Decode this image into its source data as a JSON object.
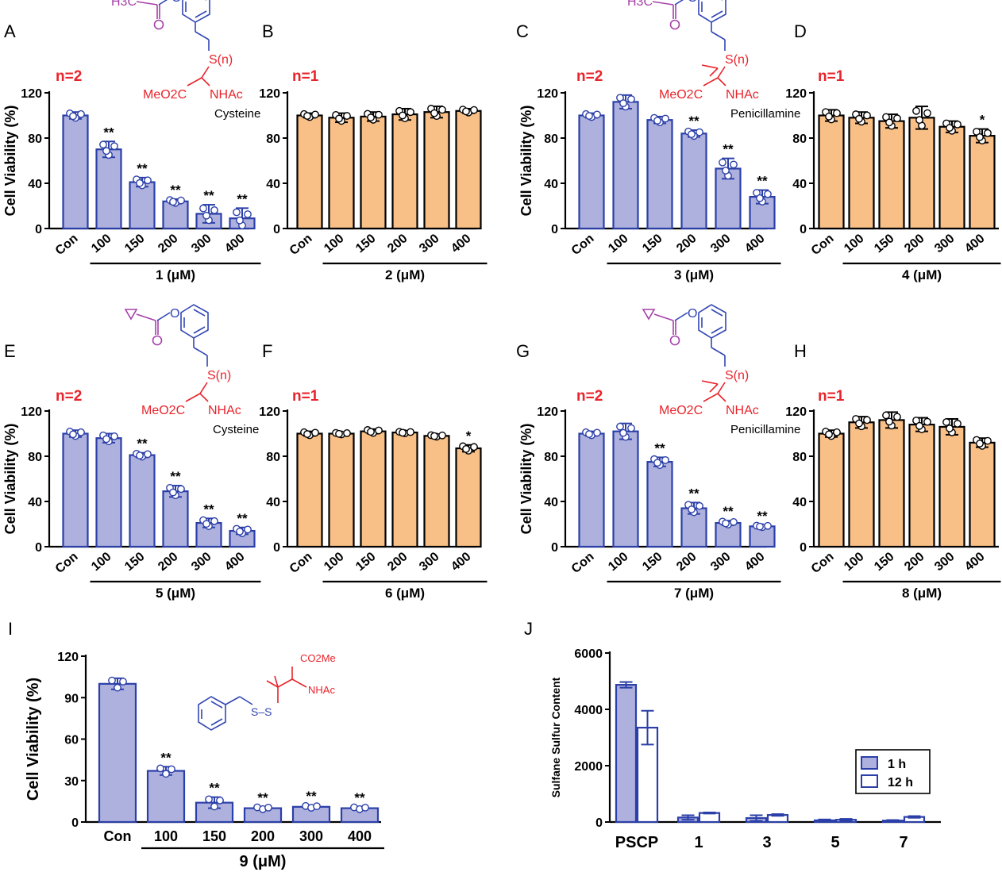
{
  "colors": {
    "blue_fill": "#aeb1de",
    "blue_edge": "#2b3fa8",
    "orange_fill": "#f8bf86",
    "black": "#000000",
    "red_text": "#e8242c",
    "purple_struct": "#a640a8",
    "blue_struct": "#3246b4",
    "red_struct": "#e8242c"
  },
  "icons": {
    "structure": "chemical-structure-icon",
    "dot": "data-point-icon"
  },
  "shared": {
    "ylabel": "Cell Viability (%)",
    "categories": [
      "Con",
      "100",
      "150",
      "200",
      "300",
      "400"
    ]
  },
  "chart_data": [
    {
      "id": "A",
      "panel_letter": "A",
      "type": "bar",
      "n_label": "n=2",
      "title": "",
      "ylabel": "Cell Viability (%)",
      "xlabel": "1 (μM)",
      "ylim": [
        0,
        120
      ],
      "yticks": [
        "0",
        "40",
        "80",
        "120"
      ],
      "categories": [
        "Con",
        "100",
        "150",
        "200",
        "300",
        "400"
      ],
      "values": [
        100,
        70,
        41,
        24,
        13,
        9
      ],
      "errors": [
        3,
        7,
        4,
        2,
        8,
        9
      ],
      "significance": [
        "",
        "**",
        "**",
        "**",
        "**",
        "**"
      ],
      "color": "blue",
      "structure": {
        "acyl": "H3C",
        "ring_sub": "O",
        "linker": "S(n)",
        "ester": "MeO2C",
        "amide": "NHAc",
        "label": "Cysteine",
        "gem_dimethyl": false
      }
    },
    {
      "id": "B",
      "panel_letter": "B",
      "type": "bar",
      "n_label": "n=1",
      "title": "",
      "ylabel": "",
      "xlabel": "2 (μM)",
      "ylim": [
        0,
        120
      ],
      "yticks": [
        "0",
        "40",
        "80",
        "120"
      ],
      "categories": [
        "Con",
        "100",
        "150",
        "200",
        "300",
        "400"
      ],
      "values": [
        100,
        98,
        99,
        101,
        103,
        104
      ],
      "errors": [
        2,
        4,
        4,
        5,
        5,
        2
      ],
      "significance": [
        "",
        "",
        "",
        "",
        "",
        ""
      ],
      "color": "orange"
    },
    {
      "id": "C",
      "panel_letter": "C",
      "type": "bar",
      "n_label": "n=2",
      "title": "",
      "ylabel": "Cell Viability (%)",
      "xlabel": "3 (μM)",
      "ylim": [
        0,
        120
      ],
      "yticks": [
        "0",
        "40",
        "80",
        "120"
      ],
      "categories": [
        "Con",
        "100",
        "150",
        "200",
        "300",
        "400"
      ],
      "values": [
        100,
        112,
        96,
        84,
        53,
        28
      ],
      "errors": [
        2,
        6,
        3,
        3,
        9,
        6
      ],
      "significance": [
        "",
        "",
        "",
        "**",
        "**",
        "**"
      ],
      "color": "blue",
      "structure": {
        "acyl": "H3C",
        "ring_sub": "O",
        "linker": "S(n)",
        "ester": "MeO2C",
        "amide": "NHAc",
        "label": "Penicillamine",
        "gem_dimethyl": true
      }
    },
    {
      "id": "D",
      "panel_letter": "D",
      "type": "bar",
      "n_label": "n=1",
      "title": "",
      "ylabel": "",
      "xlabel": "4 (μM)",
      "ylim": [
        0,
        120
      ],
      "yticks": [
        "0",
        "40",
        "80",
        "120"
      ],
      "categories": [
        "Con",
        "100",
        "150",
        "200",
        "300",
        "400"
      ],
      "values": [
        100,
        98,
        95,
        98,
        90,
        82
      ],
      "errors": [
        5,
        5,
        6,
        10,
        5,
        6
      ],
      "significance": [
        "",
        "",
        "",
        "",
        "",
        "*"
      ],
      "color": "orange"
    },
    {
      "id": "E",
      "panel_letter": "E",
      "type": "bar",
      "n_label": "n=2",
      "title": "",
      "ylabel": "Cell Viability (%)",
      "xlabel": "5 (μM)",
      "ylim": [
        0,
        120
      ],
      "yticks": [
        "0",
        "40",
        "80",
        "120"
      ],
      "categories": [
        "Con",
        "100",
        "150",
        "200",
        "300",
        "400"
      ],
      "values": [
        100,
        96,
        81,
        49,
        21,
        14
      ],
      "errors": [
        3,
        4,
        2,
        5,
        4,
        3
      ],
      "significance": [
        "",
        "",
        "**",
        "**",
        "**",
        "**"
      ],
      "color": "blue",
      "structure": {
        "acyl": "",
        "ring_sub": "O",
        "linker": "S(n)",
        "ester": "MeO2C",
        "amide": "NHAc",
        "label": "Cysteine",
        "gem_dimethyl": false,
        "cyclopropyl": true
      }
    },
    {
      "id": "F",
      "panel_letter": "F",
      "type": "bar",
      "n_label": "n=1",
      "title": "",
      "ylabel": "",
      "xlabel": "6 (μM)",
      "ylim": [
        0,
        120
      ],
      "yticks": [
        "0",
        "40",
        "80",
        "120"
      ],
      "categories": [
        "Con",
        "100",
        "150",
        "200",
        "300",
        "400"
      ],
      "values": [
        100,
        100,
        102,
        101,
        98,
        87
      ],
      "errors": [
        2,
        1,
        2,
        1,
        1,
        3
      ],
      "significance": [
        "",
        "",
        "",
        "",
        "",
        "*"
      ],
      "color": "orange"
    },
    {
      "id": "G",
      "panel_letter": "G",
      "type": "bar",
      "n_label": "n=2",
      "title": "",
      "ylabel": "Cell Viability (%)",
      "xlabel": "7 (μM)",
      "ylim": [
        0,
        120
      ],
      "yticks": [
        "0",
        "40",
        "80",
        "120"
      ],
      "categories": [
        "Con",
        "100",
        "150",
        "200",
        "300",
        "400"
      ],
      "values": [
        100,
        102,
        75,
        34,
        21,
        18
      ],
      "errors": [
        2,
        7,
        4,
        5,
        2,
        1
      ],
      "significance": [
        "",
        "",
        "**",
        "**",
        "**",
        "**"
      ],
      "color": "blue",
      "structure": {
        "acyl": "",
        "ring_sub": "O",
        "linker": "S(n)",
        "ester": "MeO2C",
        "amide": "NHAc",
        "label": "Penicillamine",
        "gem_dimethyl": true,
        "cyclopropyl": true
      }
    },
    {
      "id": "H",
      "panel_letter": "H",
      "type": "bar",
      "n_label": "n=1",
      "title": "",
      "ylabel": "",
      "xlabel": "8 (μM)",
      "ylim": [
        0,
        120
      ],
      "yticks": [
        "0",
        "40",
        "80",
        "120"
      ],
      "categories": [
        "Con",
        "100",
        "150",
        "200",
        "300",
        "400"
      ],
      "values": [
        100,
        110,
        112,
        108,
        106,
        92
      ],
      "errors": [
        3,
        5,
        7,
        6,
        7,
        4
      ],
      "significance": [
        "",
        "",
        "",
        "",
        "",
        ""
      ],
      "color": "orange"
    },
    {
      "id": "I",
      "panel_letter": "I",
      "type": "bar",
      "n_label": "",
      "title": "",
      "ylabel": "Cell Viability (%)",
      "xlabel": "9 (μM)",
      "ylim": [
        0,
        120
      ],
      "yticks": [
        "0",
        "30",
        "60",
        "90",
        "120"
      ],
      "categories": [
        "Con",
        "100",
        "150",
        "200",
        "300",
        "400"
      ],
      "values": [
        100,
        37,
        14,
        10,
        11,
        10
      ],
      "errors": [
        4,
        3,
        4,
        1,
        1,
        1
      ],
      "significance": [
        "",
        "**",
        "**",
        "**",
        "**",
        "**"
      ],
      "color": "blue",
      "structure": {
        "ester": "CO2Me",
        "amide": "NHAc",
        "linker": "S–S"
      }
    },
    {
      "id": "J",
      "panel_letter": "J",
      "type": "bar",
      "n_label": "",
      "title": "",
      "ylabel": "Sulfane Sulfur Content",
      "xlabel": "",
      "ylim": [
        0,
        6000
      ],
      "yticks": [
        "0",
        "2000",
        "4000",
        "6000"
      ],
      "categories": [
        "PSCP",
        "1",
        "3",
        "5",
        "7"
      ],
      "legend": [
        "1 h",
        "12 h"
      ],
      "legend_position": "right",
      "series": [
        {
          "name": "1 h",
          "values": [
            4870,
            160,
            140,
            60,
            50
          ],
          "errors": [
            100,
            80,
            100,
            30,
            20
          ]
        },
        {
          "name": "12 h",
          "values": [
            3350,
            320,
            250,
            80,
            180
          ],
          "errors": [
            600,
            20,
            30,
            30,
            30
          ]
        }
      ]
    }
  ]
}
